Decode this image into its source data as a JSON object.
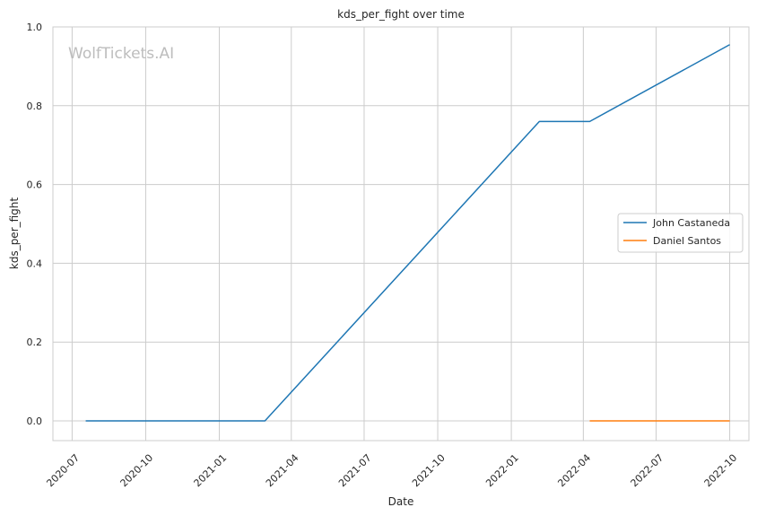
{
  "chart_data": {
    "type": "line",
    "title": "kds_per_fight over time",
    "xlabel": "Date",
    "ylabel": "kds_per_fight",
    "watermark": "WolfTickets.AI",
    "x_ticks": [
      "2020-07",
      "2020-10",
      "2021-01",
      "2021-04",
      "2021-07",
      "2021-10",
      "2022-01",
      "2022-04",
      "2022-07",
      "2022-10"
    ],
    "y_ticks": [
      "0.0",
      "0.2",
      "0.4",
      "0.6",
      "0.8",
      "1.0"
    ],
    "xlim": [
      "2020-06-07",
      "2022-10-25"
    ],
    "ylim": [
      -0.05,
      1.0
    ],
    "grid": true,
    "legend_position": "center-right",
    "series": [
      {
        "name": "John Castaneda",
        "color": "#1f77b4",
        "points": [
          {
            "x": "2020-07-18",
            "y": 0.0
          },
          {
            "x": "2021-02-27",
            "y": 0.0
          },
          {
            "x": "2022-02-05",
            "y": 0.76
          },
          {
            "x": "2022-04-09",
            "y": 0.76
          },
          {
            "x": "2022-10-01",
            "y": 0.955
          }
        ]
      },
      {
        "name": "Daniel Santos",
        "color": "#ff7f0e",
        "points": [
          {
            "x": "2022-04-09",
            "y": 0.0
          },
          {
            "x": "2022-10-01",
            "y": 0.0
          }
        ]
      }
    ]
  }
}
